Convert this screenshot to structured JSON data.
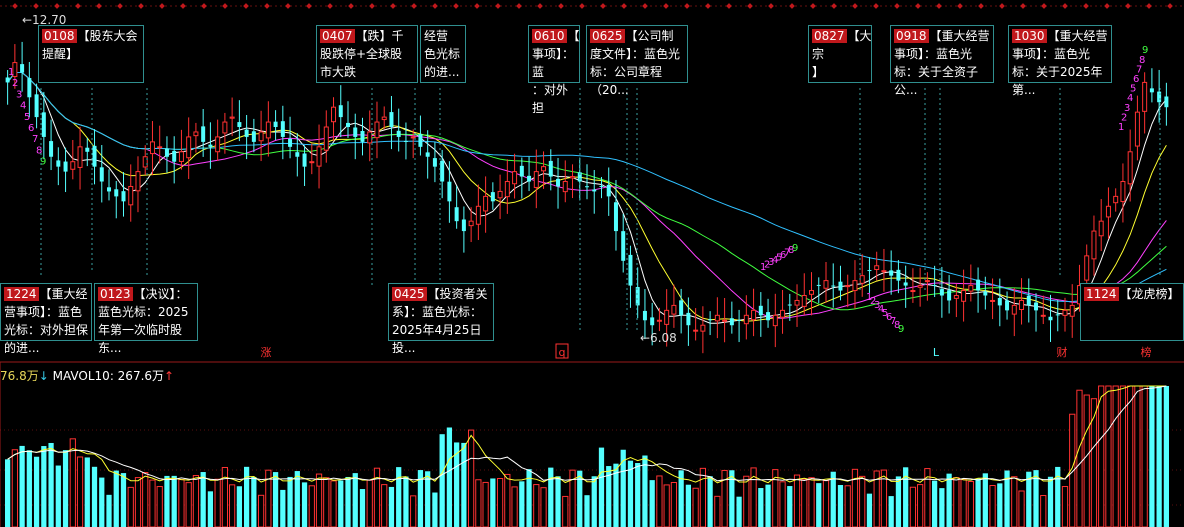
{
  "chart_data": {
    "type": "candlestick",
    "price_high_label": "12.70",
    "price_low_label": "6.08",
    "volume_indicator": {
      "prefix": "76.8万",
      "prefix_arrow": "↓",
      "mavol10_label": "MAVOL10: 267.6万",
      "mavol10_arrow": "↑"
    },
    "marker_letters": [
      {
        "text": "涨",
        "style": "red"
      },
      {
        "text": "q",
        "style": "red-box"
      },
      {
        "text": "L",
        "style": "cyan"
      },
      {
        "text": "财",
        "style": "red"
      },
      {
        "text": "榜",
        "style": "red"
      }
    ],
    "annotations": [
      {
        "date": "0108",
        "text": "【股东大会提醒】"
      },
      {
        "date": "0407",
        "text": "【跌】千股跌停+全球股市大跌"
      },
      {
        "date": "",
        "text": "经营\n色光标\n的进..."
      },
      {
        "date": "0610",
        "text": "【\n事项】：蓝\n：对外担"
      },
      {
        "date": "0625",
        "text": "【公司制度文件】：蓝色光标：公司章程（20..."
      },
      {
        "date": "0827",
        "text": "【大宗\n】"
      },
      {
        "date": "0918",
        "text": "【重大经营事项】：蓝色光标：关于全资子公..."
      },
      {
        "date": "1030",
        "text": "【重大经营事项】：蓝色光标：关于2025年第..."
      },
      {
        "date": "1224",
        "text": "【重大经营事项】：蓝色光标：对外担保的进..."
      },
      {
        "date": "0123",
        "text": "【决议】：蓝色光标：2025年第一次临时股东..."
      },
      {
        "date": "0425",
        "text": "【投资者关系】：蓝色光标：2025年4月25日投..."
      },
      {
        "date": "1124",
        "text": "【龙虎榜】"
      }
    ],
    "td_sequence_labels": [
      "1",
      "2",
      "3",
      "4",
      "5",
      "6",
      "7",
      "8",
      "9"
    ],
    "closes": [
      11.4,
      11.8,
      11.6,
      11.1,
      10.7,
      10.3,
      9.9,
      9.7,
      9.6,
      9.8,
      10.1,
      10.0,
      9.7,
      9.4,
      9.2,
      9.1,
      9.0,
      9.3,
      9.6,
      9.9,
      10.2,
      10.1,
      9.9,
      9.8,
      10.0,
      10.3,
      10.4,
      10.2,
      10.1,
      10.3,
      10.6,
      10.7,
      10.5,
      10.3,
      10.2,
      10.4,
      10.6,
      10.5,
      10.3,
      10.1,
      9.9,
      9.7,
      9.8,
      10.1,
      10.5,
      10.9,
      10.7,
      10.5,
      10.3,
      10.2,
      10.4,
      10.6,
      10.7,
      10.5,
      10.3,
      10.2,
      10.3,
      10.1,
      9.9,
      9.7,
      9.4,
      9.0,
      8.6,
      8.4,
      8.6,
      8.9,
      9.1,
      9.0,
      9.2,
      9.4,
      9.6,
      9.5,
      9.4,
      9.6,
      9.7,
      9.5,
      9.3,
      9.4,
      9.5,
      9.4,
      9.3,
      9.2,
      9.3,
      9.1,
      8.4,
      7.8,
      7.3,
      6.9,
      6.6,
      6.5,
      6.6,
      6.8,
      6.9,
      6.7,
      6.5,
      6.4,
      6.5,
      6.6,
      6.7,
      6.6,
      6.5,
      6.6,
      6.7,
      6.8,
      6.7,
      6.6,
      6.7,
      6.8,
      6.9,
      7.0,
      7.1,
      7.2,
      7.3,
      7.4,
      7.3,
      7.2,
      7.3,
      7.4,
      7.5,
      7.6,
      7.7,
      7.6,
      7.5,
      7.4,
      7.3,
      7.2,
      7.3,
      7.4,
      7.3,
      7.1,
      7.0,
      7.1,
      7.2,
      7.3,
      7.2,
      7.1,
      7.0,
      6.9,
      6.8,
      6.9,
      7.0,
      6.9,
      6.8,
      6.7,
      6.6,
      6.7,
      6.8,
      6.9,
      7.3,
      7.9,
      8.4,
      8.6,
      8.9,
      9.1,
      9.4,
      10.0,
      10.8,
      11.4,
      11.2,
      11.0,
      10.9
    ],
    "volume_note": "volume bars in 万 units, relative heights only"
  }
}
